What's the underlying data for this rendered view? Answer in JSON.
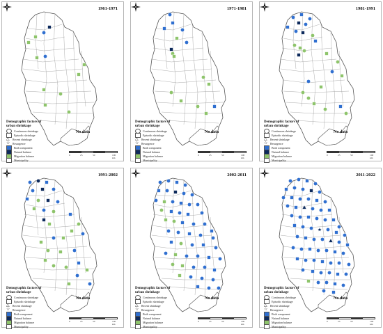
{
  "panels": [
    {
      "title": "1961-1971"
    },
    {
      "title": "1971-1981"
    },
    {
      "title": "1981-1991"
    },
    {
      "title": "1991-2002"
    },
    {
      "title": "2002-2011"
    },
    {
      "title": "2011-2022"
    }
  ],
  "no_data_label": "No data",
  "legend": {
    "title_line1": "Demographic factors of",
    "title_line2": "urban shrinkage",
    "items": [
      {
        "label": "Continuous shrinkage",
        "icon": "circle-outline",
        "color": "#ffffff"
      },
      {
        "label": "Episodic shrinkage",
        "icon": "square-outline",
        "color": "#ffffff"
      },
      {
        "label": "Recent shrinkage",
        "icon": "triangle-outline",
        "color": "#ffffff"
      },
      {
        "label": "Resurgence",
        "icon": "star-outline",
        "color": "#ffffff"
      },
      {
        "label": "Both component",
        "icon": "filled-square",
        "color": "#2f6fd0"
      },
      {
        "label": "Natural balance",
        "icon": "filled-square",
        "color": "#0d2a5c"
      },
      {
        "label": "Migration balance",
        "icon": "filled-square",
        "color": "#8ec46b"
      },
      {
        "label": "Municipality",
        "icon": "outline-rect",
        "color": "#ffffff"
      }
    ]
  },
  "scale": {
    "ticks": [
      "0",
      "25",
      "50",
      "100 km"
    ]
  },
  "colors": {
    "both": "#2f6fd0",
    "natural": "#0d2a5c",
    "migration": "#8ec46b",
    "border": "#8a8a8a"
  }
}
